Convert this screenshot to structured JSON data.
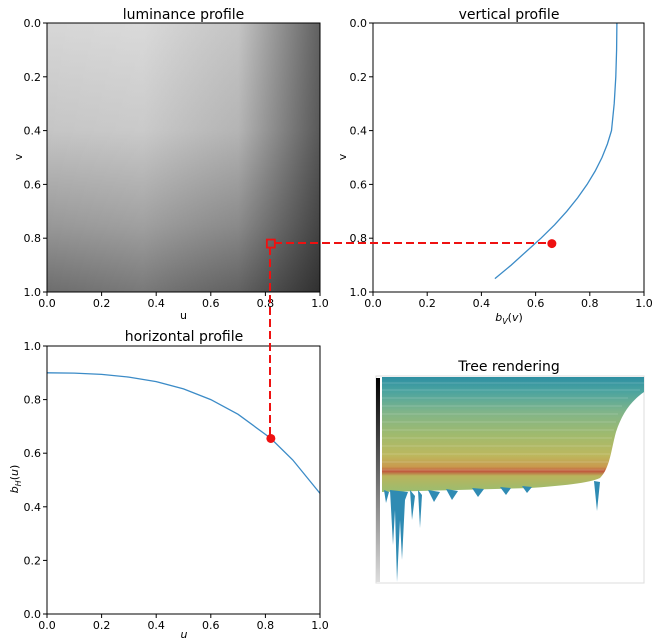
{
  "colors": {
    "curve": "#3b8bc7",
    "highlight": "#ee1111",
    "axis": "#000000"
  },
  "chart_data": [
    {
      "id": "luminance",
      "type": "heatmap",
      "title": "luminance profile",
      "xlabel": "u",
      "ylabel": "v",
      "xlim": [
        0.0,
        1.0
      ],
      "ylim": [
        1.0,
        0.0
      ],
      "xticks": [
        "0.0",
        "0.2",
        "0.4",
        "0.6",
        "0.8",
        "1.0"
      ],
      "yticks": [
        "0.0",
        "0.2",
        "0.4",
        "0.6",
        "0.8",
        "1.0"
      ],
      "colormap": "gray",
      "marker": {
        "u": 0.82,
        "v": 0.82
      }
    },
    {
      "id": "vertical",
      "type": "line",
      "title": "vertical profile",
      "xlabel": "b_V(v)",
      "ylabel": "v",
      "xlim": [
        0.0,
        1.0
      ],
      "ylim": [
        1.0,
        0.0
      ],
      "xticks": [
        "0.0",
        "0.2",
        "0.4",
        "0.6",
        "0.8",
        "1.0"
      ],
      "yticks": [
        "0.0",
        "0.2",
        "0.4",
        "0.6",
        "0.8",
        "1.0"
      ],
      "series": [
        {
          "x": [
            0.9,
            0.899,
            0.896,
            0.89,
            0.88,
            0.865,
            0.845,
            0.82,
            0.79,
            0.755,
            0.715,
            0.67,
            0.62,
            0.565,
            0.51,
            0.45
          ],
          "y": [
            0.0,
            0.1,
            0.2,
            0.3,
            0.4,
            0.45,
            0.5,
            0.55,
            0.6,
            0.65,
            0.7,
            0.75,
            0.8,
            0.85,
            0.9,
            0.95
          ]
        }
      ],
      "marker": {
        "x": 0.66,
        "y": 0.82
      }
    },
    {
      "id": "horizontal",
      "type": "line",
      "title": "horizontal profile",
      "xlabel": "u",
      "ylabel": "b_H(u)",
      "xlim": [
        0.0,
        1.0
      ],
      "ylim": [
        0.0,
        1.0
      ],
      "xticks": [
        "0.0",
        "0.2",
        "0.4",
        "0.6",
        "0.8",
        "1.0"
      ],
      "yticks": [
        "0.0",
        "0.2",
        "0.4",
        "0.6",
        "0.8",
        "1.0"
      ],
      "series": [
        {
          "x": [
            0.0,
            0.1,
            0.2,
            0.3,
            0.4,
            0.5,
            0.6,
            0.7,
            0.8,
            0.82,
            0.9,
            1.0
          ],
          "y": [
            0.9,
            0.899,
            0.894,
            0.884,
            0.867,
            0.84,
            0.8,
            0.745,
            0.67,
            0.655,
            0.575,
            0.45
          ]
        }
      ],
      "marker": {
        "x": 0.82,
        "y": 0.655
      }
    },
    {
      "id": "tree",
      "type": "other",
      "title": "Tree rendering"
    }
  ]
}
